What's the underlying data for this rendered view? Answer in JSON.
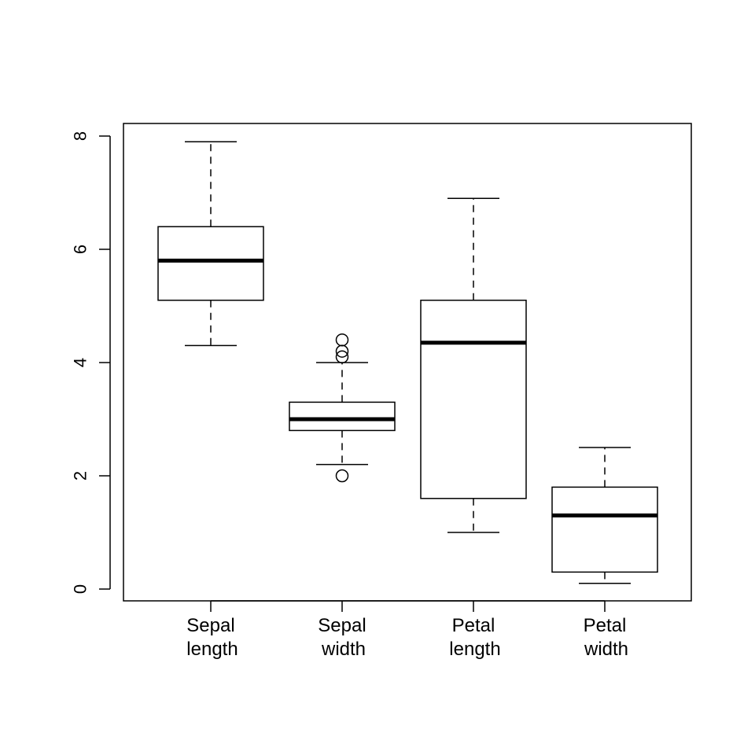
{
  "chart_data": {
    "type": "box",
    "title": "",
    "xlabel": "",
    "ylabel": "",
    "ylim": [
      -0.2,
      8.2
    ],
    "yticks": [
      0,
      2,
      4,
      6,
      8
    ],
    "grid": false,
    "categories": [
      {
        "label_lines": [
          "Sepal",
          "length"
        ],
        "whisker_low": 4.3,
        "q1": 5.1,
        "median": 5.8,
        "q3": 6.4,
        "whisker_high": 7.9,
        "outliers": []
      },
      {
        "label_lines": [
          "Sepal",
          "width"
        ],
        "whisker_low": 2.2,
        "q1": 2.8,
        "median": 3.0,
        "q3": 3.3,
        "whisker_high": 4.0,
        "outliers": [
          4.4,
          4.2,
          4.1,
          2.0
        ]
      },
      {
        "label_lines": [
          "Petal",
          "length"
        ],
        "whisker_low": 1.0,
        "q1": 1.6,
        "median": 4.35,
        "q3": 5.1,
        "whisker_high": 6.9,
        "outliers": []
      },
      {
        "label_lines": [
          "Petal",
          "width"
        ],
        "whisker_low": 0.1,
        "q1": 0.3,
        "median": 1.3,
        "q3": 1.8,
        "whisker_high": 2.5,
        "outliers": []
      }
    ]
  }
}
